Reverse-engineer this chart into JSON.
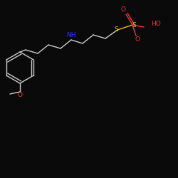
{
  "background_color": "#0a0a0a",
  "bond_color": "#CCCCCC",
  "atom_colors": {
    "O": "#FF3333",
    "S": "#FFB800",
    "N": "#3333FF",
    "C": "#CCCCCC"
  },
  "figsize": [
    2.5,
    2.5
  ],
  "dpi": 100
}
